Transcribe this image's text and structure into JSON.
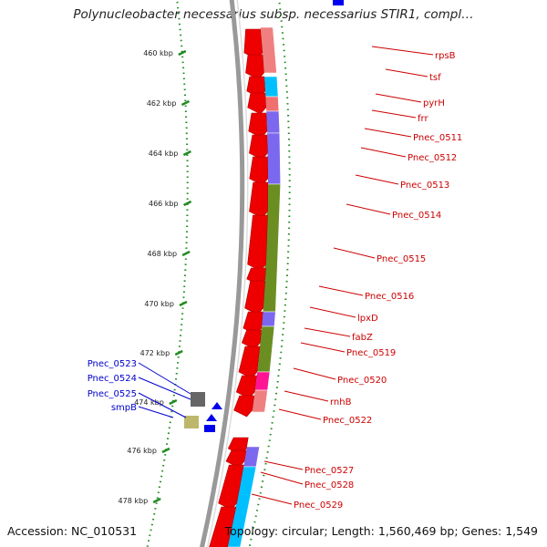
{
  "title": "Polynucleobacter necessarius subsp. necessarius STIR1, compl…",
  "accession": "Accession: NC_010531",
  "summary": "Topology: circular; Length: 1,560,469 bp; Genes: 1,549",
  "ticks": [
    {
      "label": "460 kbp"
    },
    {
      "label": "462 kbp"
    },
    {
      "label": "464 kbp"
    },
    {
      "label": "466 kbp"
    },
    {
      "label": "468 kbp"
    },
    {
      "label": "470 kbp"
    },
    {
      "label": "472 kbp"
    },
    {
      "label": "474 kbp"
    },
    {
      "label": "476 kbp"
    },
    {
      "label": "478 kbp"
    }
  ],
  "right_labels": [
    {
      "text": "rpsB"
    },
    {
      "text": "tsf"
    },
    {
      "text": "pyrH"
    },
    {
      "text": "frr"
    },
    {
      "text": "Pnec_0511"
    },
    {
      "text": "Pnec_0512"
    },
    {
      "text": "Pnec_0513"
    },
    {
      "text": "Pnec_0514"
    },
    {
      "text": "Pnec_0515"
    },
    {
      "text": "Pnec_0516"
    },
    {
      "text": "lpxD"
    },
    {
      "text": "fabZ"
    },
    {
      "text": "Pnec_0519"
    },
    {
      "text": "Pnec_0520"
    },
    {
      "text": "rnhB"
    },
    {
      "text": "Pnec_0522"
    },
    {
      "text": "Pnec_0527"
    },
    {
      "text": "Pnec_0528"
    },
    {
      "text": "Pnec_0529"
    }
  ],
  "left_labels": [
    {
      "text": "Pnec_0523"
    },
    {
      "text": "Pnec_0524"
    },
    {
      "text": "Pnec_0525"
    },
    {
      "text": "smpB"
    }
  ],
  "colors": {
    "gene_red": "#ee0000",
    "gene_blue": "#0000ee",
    "cog_pink": "#f08080",
    "cog_cyan": "#00bfff",
    "cog_salmon": "#f07070",
    "cog_purple": "#7b68ee",
    "cog_olive": "#6b8e23",
    "cog_magenta": "#ff1493",
    "cog_gray": "#666666",
    "cog_khaki": "#bdb76b",
    "backbone": "#999999",
    "tick_green": "#228b22",
    "label_red": "#cc0000",
    "label_blue": "#0000cc"
  }
}
